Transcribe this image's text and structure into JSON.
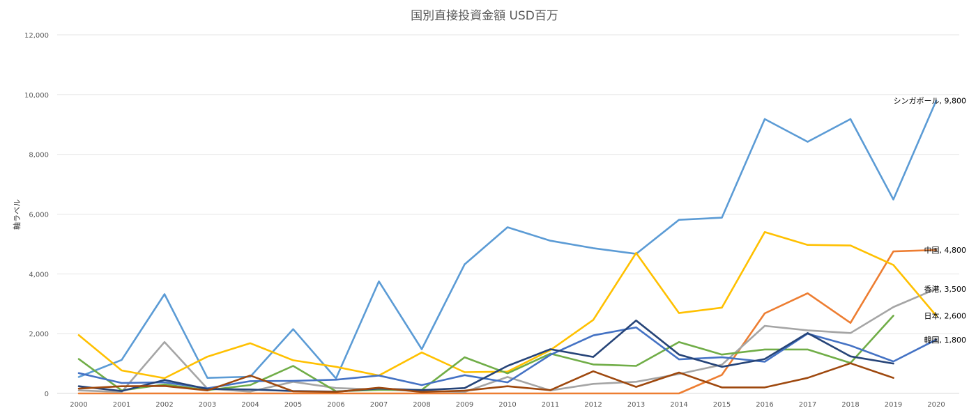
{
  "chart_data": {
    "type": "line",
    "title": "国別直接投資金額  USD百万",
    "ylabel": "軸ラベル",
    "xlabel": "",
    "ylim": [
      0,
      12000
    ],
    "yticks": [
      0,
      2000,
      4000,
      6000,
      8000,
      10000,
      12000
    ],
    "ytick_labels": [
      "0",
      "2,000",
      "4,000",
      "6,000",
      "8,000",
      "10,000",
      "12,000"
    ],
    "grid": true,
    "legend": "none",
    "categories": [
      "2000",
      "2001",
      "2002",
      "2003",
      "2004",
      "2005",
      "2006",
      "2007",
      "2008",
      "2009",
      "2010",
      "2011",
      "2012",
      "2013",
      "2014",
      "2015",
      "2016",
      "2017",
      "2018",
      "2019",
      "2020"
    ],
    "series": [
      {
        "name": "シンガポール",
        "color": "#5B9BD5",
        "values": [
          550,
          1120,
          3320,
          520,
          560,
          2150,
          500,
          3750,
          1480,
          4320,
          5560,
          5110,
          4860,
          4670,
          5810,
          5880,
          9180,
          8420,
          9180,
          6490,
          9800
        ],
        "end_label": "シンガポール, 9,800"
      },
      {
        "name": "中国",
        "color": "#ED7D31",
        "values": [
          0,
          0,
          0,
          0,
          0,
          0,
          0,
          0,
          0,
          0,
          0,
          0,
          0,
          0,
          0,
          620,
          2680,
          3350,
          2360,
          4750,
          4800
        ],
        "end_label": "中国, 4,800"
      },
      {
        "name": "香港",
        "color": "#A5A5A5",
        "values": [
          100,
          50,
          1720,
          160,
          60,
          390,
          180,
          130,
          80,
          50,
          550,
          100,
          320,
          390,
          650,
          960,
          2260,
          2110,
          2020,
          2890,
          3500
        ],
        "end_label": "香港, 3,500"
      },
      {
        "name": "",
        "color": "#FFC000",
        "values": [
          1950,
          770,
          510,
          1230,
          1680,
          1110,
          890,
          600,
          1370,
          710,
          730,
          1450,
          2460,
          4700,
          2690,
          2870,
          5400,
          4970,
          4950,
          4300,
          2600
        ]
      },
      {
        "name": "日本",
        "color": "#70AD47",
        "values": [
          1150,
          100,
          300,
          110,
          280,
          920,
          70,
          120,
          120,
          1210,
          670,
          1330,
          970,
          920,
          1720,
          1300,
          1470,
          1470,
          1020,
          2600,
          null
        ],
        "end_label": "日本, 2,600",
        "end_label_index": 19
      },
      {
        "name": "韓国",
        "color": "#4472C4",
        "values": [
          680,
          350,
          370,
          170,
          410,
          420,
          460,
          600,
          280,
          610,
          370,
          1290,
          1940,
          2210,
          1140,
          1210,
          1060,
          2000,
          1600,
          1070,
          1800
        ],
        "end_label": "韓国, 1,800"
      },
      {
        "name": "",
        "color": "#264478",
        "values": [
          240,
          80,
          450,
          150,
          130,
          80,
          60,
          160,
          110,
          180,
          920,
          1480,
          1220,
          2440,
          1300,
          890,
          1150,
          2020,
          1240,
          1000,
          null
        ]
      },
      {
        "name": "",
        "color": "#9E480E",
        "values": [
          160,
          240,
          250,
          100,
          600,
          70,
          50,
          190,
          50,
          90,
          240,
          110,
          740,
          220,
          700,
          200,
          200,
          520,
          1010,
          520,
          null
        ]
      }
    ]
  }
}
